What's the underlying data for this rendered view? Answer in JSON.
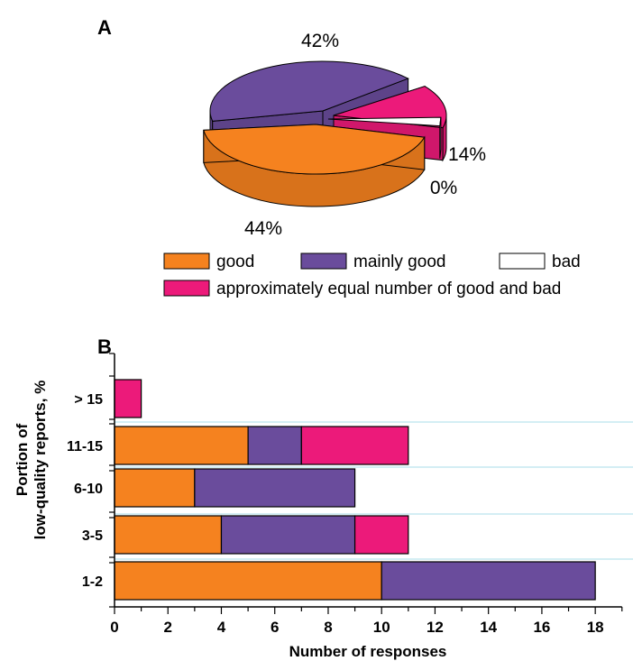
{
  "colors": {
    "good": "#f5821f",
    "mainly_good": "#6a4c9c",
    "bad": "#ffffff",
    "equal": "#ec1a7a",
    "gridline": "#a8dce8"
  },
  "legend": {
    "items": [
      {
        "key": "good",
        "label": "good"
      },
      {
        "key": "mainly_good",
        "label": "mainly good"
      },
      {
        "key": "bad",
        "label": "bad"
      },
      {
        "key": "equal",
        "label": "approximately equal number of good and bad"
      }
    ]
  },
  "chart_data": [
    {
      "type": "pie",
      "panel": "A",
      "slices": [
        {
          "key": "good",
          "value": 44,
          "label": "44%"
        },
        {
          "key": "mainly_good",
          "value": 42,
          "label": "42%"
        },
        {
          "key": "bad",
          "value": 0,
          "label": "0%"
        },
        {
          "key": "equal",
          "value": 14,
          "label": "14%"
        }
      ]
    },
    {
      "type": "bar",
      "orientation": "horizontal",
      "stacked": true,
      "panel": "B",
      "ylabel_line1": "Portion of",
      "ylabel_line2": "low-quality reports, %",
      "xlabel": "Number of responses",
      "xlim": [
        0,
        19
      ],
      "xticks": [
        0,
        2,
        4,
        6,
        8,
        10,
        12,
        14,
        16,
        18
      ],
      "categories": [
        "> 15",
        "11-15",
        "6-10",
        "3-5",
        "1-2"
      ],
      "series": [
        {
          "key": "good",
          "values": [
            0,
            5,
            3,
            4,
            10
          ]
        },
        {
          "key": "mainly_good",
          "values": [
            0,
            2,
            6,
            5,
            8
          ]
        },
        {
          "key": "equal",
          "values": [
            1,
            4,
            0,
            2,
            0
          ]
        }
      ]
    }
  ]
}
